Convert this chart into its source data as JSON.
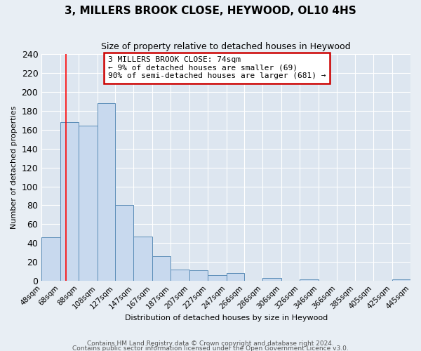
{
  "title": "3, MILLERS BROOK CLOSE, HEYWOOD, OL10 4HS",
  "subtitle": "Size of property relative to detached houses in Heywood",
  "xlabel": "Distribution of detached houses by size in Heywood",
  "ylabel": "Number of detached properties",
  "footer_line1": "Contains HM Land Registry data © Crown copyright and database right 2024.",
  "footer_line2": "Contains public sector information licensed under the Open Government Licence v3.0.",
  "bin_edges": [
    48,
    68,
    88,
    108,
    127,
    147,
    167,
    187,
    207,
    227,
    247,
    266,
    286,
    306,
    326,
    346,
    366,
    385,
    405,
    425,
    445
  ],
  "bin_labels": [
    "48sqm",
    "68sqm",
    "88sqm",
    "108sqm",
    "127sqm",
    "147sqm",
    "167sqm",
    "187sqm",
    "207sqm",
    "227sqm",
    "247sqm",
    "266sqm",
    "286sqm",
    "306sqm",
    "326sqm",
    "346sqm",
    "366sqm",
    "385sqm",
    "405sqm",
    "425sqm",
    "445sqm"
  ],
  "counts": [
    46,
    168,
    164,
    188,
    80,
    47,
    26,
    12,
    11,
    6,
    8,
    0,
    3,
    0,
    2,
    0,
    0,
    0,
    0,
    2
  ],
  "bar_color": "#c8d9ee",
  "bar_edge_color": "#5b8db8",
  "red_line_x": 74,
  "ylim": [
    0,
    240
  ],
  "yticks": [
    0,
    20,
    40,
    60,
    80,
    100,
    120,
    140,
    160,
    180,
    200,
    220,
    240
  ],
  "annotation_title": "3 MILLERS BROOK CLOSE: 74sqm",
  "annotation_line1": "← 9% of detached houses are smaller (69)",
  "annotation_line2": "90% of semi-detached houses are larger (681) →",
  "annotation_box_facecolor": "#ffffff",
  "annotation_box_edgecolor": "#cc0000",
  "background_color": "#e8eef4",
  "plot_bg_color": "#dde6f0",
  "grid_color": "#ffffff",
  "title_fontsize": 11,
  "subtitle_fontsize": 9,
  "axis_label_fontsize": 8,
  "tick_fontsize": 7.5
}
